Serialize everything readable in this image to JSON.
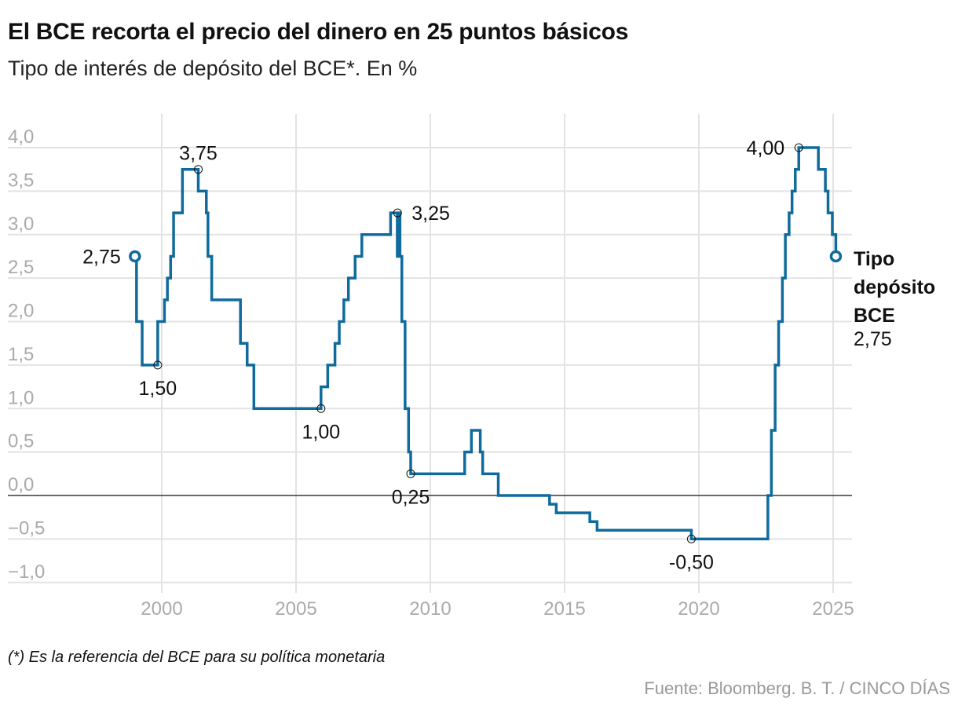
{
  "title": "El BCE recorta el precio del dinero en 25 puntos básicos",
  "subtitle": "Tipo de interés de depósito del BCE*. En %",
  "footnote": "(*) Es la referencia del BCE para su política monetaria",
  "source": "Fuente: Bloomberg. B. T. / CINCO DÍAS",
  "chart_data": {
    "type": "line",
    "step": true,
    "title": "El BCE recorta el precio del dinero en 25 puntos básicos",
    "ylabel": "Tipo de interés de depósito del BCE (%)",
    "xlim": [
      1998.0,
      2025.7
    ],
    "ylim": [
      -1.0,
      4.0
    ],
    "grid": true,
    "line_color": "#0f6b9c",
    "x_ticks": [
      {
        "v": 2000,
        "label": "2000"
      },
      {
        "v": 2005,
        "label": "2005"
      },
      {
        "v": 2010,
        "label": "2010"
      },
      {
        "v": 2015,
        "label": "2015"
      },
      {
        "v": 2020,
        "label": "2020"
      },
      {
        "v": 2025,
        "label": "2025"
      }
    ],
    "y_ticks": [
      {
        "v": 4,
        "label": "4,0"
      },
      {
        "v": 3.5,
        "label": "3,5"
      },
      {
        "v": 3,
        "label": "3,0"
      },
      {
        "v": 2.5,
        "label": "2,5"
      },
      {
        "v": 2,
        "label": "2,0"
      },
      {
        "v": 1.5,
        "label": "1,5"
      },
      {
        "v": 1,
        "label": "1,0"
      },
      {
        "v": 0.5,
        "label": "0,5"
      },
      {
        "v": 0,
        "label": "0,0"
      },
      {
        "v": -0.5,
        "label": "−0,5"
      },
      {
        "v": -1,
        "label": "−1,0"
      }
    ],
    "series": [
      {
        "name": "Tipo depósito BCE",
        "points": [
          [
            1999.0,
            2.75
          ],
          [
            1999.06,
            2.0
          ],
          [
            1999.27,
            1.5
          ],
          [
            1999.85,
            2.0
          ],
          [
            2000.1,
            2.25
          ],
          [
            2000.21,
            2.5
          ],
          [
            2000.33,
            2.75
          ],
          [
            2000.44,
            3.25
          ],
          [
            2000.77,
            3.75
          ],
          [
            2001.36,
            3.5
          ],
          [
            2001.66,
            3.25
          ],
          [
            2001.72,
            2.75
          ],
          [
            2001.86,
            2.25
          ],
          [
            2002.93,
            1.75
          ],
          [
            2003.18,
            1.5
          ],
          [
            2003.43,
            1.0
          ],
          [
            2005.93,
            1.25
          ],
          [
            2006.18,
            1.5
          ],
          [
            2006.45,
            1.75
          ],
          [
            2006.61,
            2.0
          ],
          [
            2006.78,
            2.25
          ],
          [
            2006.95,
            2.5
          ],
          [
            2007.2,
            2.75
          ],
          [
            2007.45,
            3.0
          ],
          [
            2008.52,
            3.25
          ],
          [
            2008.77,
            2.75
          ],
          [
            2008.78,
            3.25
          ],
          [
            2008.87,
            2.75
          ],
          [
            2008.94,
            2.0
          ],
          [
            2009.06,
            1.0
          ],
          [
            2009.19,
            0.5
          ],
          [
            2009.27,
            0.25
          ],
          [
            2011.28,
            0.5
          ],
          [
            2011.53,
            0.75
          ],
          [
            2011.86,
            0.5
          ],
          [
            2011.95,
            0.25
          ],
          [
            2012.53,
            0.0
          ],
          [
            2014.44,
            -0.1
          ],
          [
            2014.69,
            -0.2
          ],
          [
            2015.94,
            -0.3
          ],
          [
            2016.21,
            -0.4
          ],
          [
            2019.72,
            -0.5
          ],
          [
            2022.57,
            0.0
          ],
          [
            2022.7,
            0.75
          ],
          [
            2022.84,
            1.5
          ],
          [
            2022.97,
            2.0
          ],
          [
            2023.11,
            2.5
          ],
          [
            2023.22,
            3.0
          ],
          [
            2023.36,
            3.25
          ],
          [
            2023.47,
            3.5
          ],
          [
            2023.59,
            3.75
          ],
          [
            2023.72,
            4.0
          ],
          [
            2024.45,
            3.75
          ],
          [
            2024.71,
            3.5
          ],
          [
            2024.81,
            3.25
          ],
          [
            2024.97,
            3.0
          ],
          [
            2025.1,
            2.75
          ]
        ]
      }
    ],
    "annotations": [
      {
        "x": 1999.0,
        "y": 2.75,
        "label": "2,75",
        "pos": "left",
        "marker": "start"
      },
      {
        "x": 1999.85,
        "y": 1.5,
        "label": "1,50",
        "pos": "below"
      },
      {
        "x": 2001.36,
        "y": 3.75,
        "label": "3,75",
        "pos": "above"
      },
      {
        "x": 2005.93,
        "y": 1.0,
        "label": "1,00",
        "pos": "below"
      },
      {
        "x": 2008.78,
        "y": 3.25,
        "label": "3,25",
        "pos": "right"
      },
      {
        "x": 2009.27,
        "y": 0.25,
        "label": "0,25",
        "pos": "below"
      },
      {
        "x": 2019.72,
        "y": -0.5,
        "label": "-0,50",
        "pos": "below"
      },
      {
        "x": 2023.72,
        "y": 4.0,
        "label": "4,00",
        "pos": "left"
      }
    ],
    "end_label": {
      "lines": [
        "Tipo",
        "depósito",
        "BCE"
      ],
      "value": "2,75"
    }
  }
}
